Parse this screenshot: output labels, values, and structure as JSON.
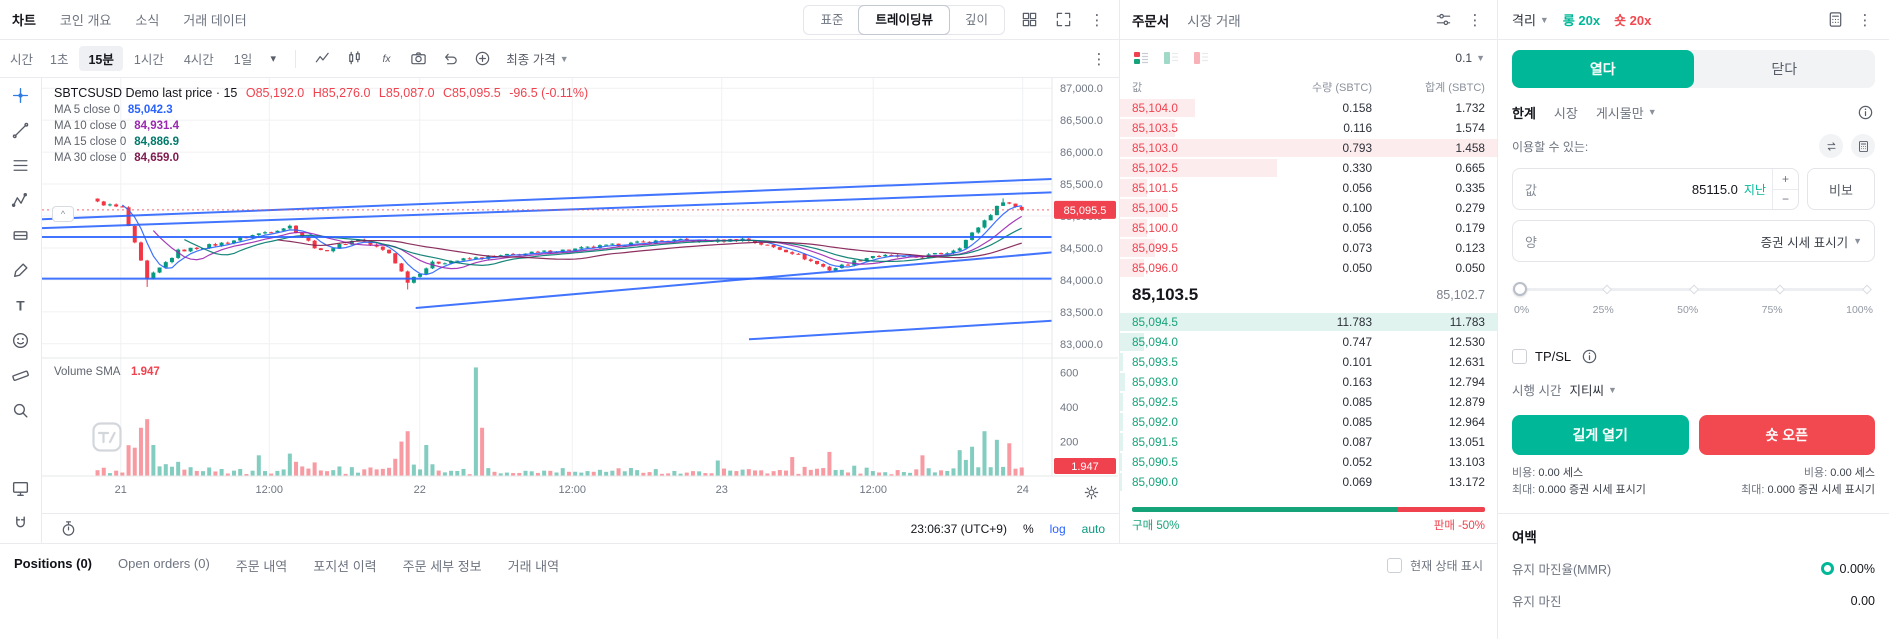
{
  "colors": {
    "green": "#00b897",
    "red": "#f1494f",
    "ob_red": "#f0424e",
    "ob_green": "#17a37a",
    "blue": "#2962ff"
  },
  "top_nav": {
    "tabs": [
      {
        "label": "차트",
        "active": true
      },
      {
        "label": "코인 개요",
        "active": false
      },
      {
        "label": "소식",
        "active": false
      },
      {
        "label": "거래 데이터",
        "active": false
      }
    ],
    "view_modes": [
      {
        "label": "표준",
        "active": false
      },
      {
        "label": "트레이딩뷰",
        "active": true
      },
      {
        "label": "깊이",
        "active": false
      }
    ]
  },
  "chart_toolbar": {
    "time_label": "시간",
    "intervals": [
      {
        "label": "1초",
        "active": false
      },
      {
        "label": "15분",
        "active": true
      },
      {
        "label": "1시간",
        "active": false
      },
      {
        "label": "4시간",
        "active": false
      },
      {
        "label": "1일",
        "active": false
      }
    ],
    "tools": [
      {
        "icon": "zigzag",
        "name": "chart-style"
      },
      {
        "icon": "candles",
        "name": "candle-type"
      },
      {
        "icon": "fx",
        "name": "indicators"
      },
      {
        "icon": "camera",
        "name": "snapshot"
      },
      {
        "icon": "undo",
        "name": "undo"
      },
      {
        "icon": "plus-circle",
        "name": "compare"
      }
    ],
    "last_price_label": "최종 가격"
  },
  "drawing_tools": [
    {
      "icon": "crosshair",
      "name": "crosshair",
      "active": true
    },
    {
      "icon": "trendline",
      "name": "trend-line",
      "active": false
    },
    {
      "icon": "fib",
      "name": "fib-retracement",
      "active": false
    },
    {
      "icon": "pattern",
      "name": "pattern",
      "active": false
    },
    {
      "icon": "position",
      "name": "long-short-position",
      "active": false
    },
    {
      "icon": "brush",
      "name": "brush",
      "active": false
    },
    {
      "icon": "text",
      "name": "text",
      "active": false
    },
    {
      "icon": "emoji",
      "name": "emoji",
      "active": false
    },
    {
      "icon": "ruler",
      "name": "measure",
      "active": false
    },
    {
      "icon": "zoom",
      "name": "zoom-in",
      "active": false
    }
  ],
  "drawing_tools_bottom": [
    {
      "icon": "monitor",
      "name": "object-tree",
      "active": false
    },
    {
      "icon": "magnet",
      "name": "magnet",
      "active": false
    }
  ],
  "legend": {
    "title": "SBTCSUSD Demo last price · 15",
    "ohlc": {
      "o": "O85,192.0",
      "h": "H85,276.0",
      "l": "L85,087.0",
      "c": "C85,095.5",
      "change": "-96.5 (-0.11%)"
    },
    "ma": [
      {
        "label": "MA 5 close 0",
        "value": "85,042.3",
        "color": "#2962ff"
      },
      {
        "label": "MA 10 close 0",
        "value": "84,931.4",
        "color": "#9b27b0"
      },
      {
        "label": "MA 15 close 0",
        "value": "84,886.9",
        "color": "#00796b"
      },
      {
        "label": "MA 30 close 0",
        "value": "84,659.0",
        "color": "#801a4f"
      }
    ],
    "volume_label": "Volume SMA",
    "volume_value": "1.947"
  },
  "chart_data": {
    "type": "candlestick",
    "symbol": "SBTCSUSD",
    "interval": "15",
    "price_axis": [
      {
        "v": 87000,
        "label": "87,000.0"
      },
      {
        "v": 86500,
        "label": "86,500.0"
      },
      {
        "v": 86000,
        "label": "86,000.0"
      },
      {
        "v": 85500,
        "label": "85,500.0"
      },
      {
        "v": 85000,
        "label": "85,000.0"
      },
      {
        "v": 84500,
        "label": "84,500.0"
      },
      {
        "v": 84000,
        "label": "84,000.0"
      },
      {
        "v": 83500,
        "label": "83,500.0"
      },
      {
        "v": 83000,
        "label": "83,000.0"
      }
    ],
    "price_view": [
      82840,
      87160
    ],
    "volume_axis": [
      {
        "v": 600,
        "label": "600"
      },
      {
        "v": 400,
        "label": "400"
      },
      {
        "v": 200,
        "label": "200"
      }
    ],
    "volume_max": 650,
    "time_ticks": [
      {
        "f": 0.078,
        "label": "21"
      },
      {
        "f": 0.225,
        "label": "12:00"
      },
      {
        "f": 0.374,
        "label": "22"
      },
      {
        "f": 0.525,
        "label": "12:00"
      },
      {
        "f": 0.673,
        "label": "23"
      },
      {
        "f": 0.823,
        "label": "12:00"
      },
      {
        "f": 0.971,
        "label": "24"
      }
    ],
    "last_price": 85095.5,
    "last_price_label": "85,095.5",
    "last_volume_label": "1.947",
    "candle_count": 150,
    "price_anchors": [
      [
        0,
        85210
      ],
      [
        4,
        85120
      ],
      [
        8,
        84000
      ],
      [
        13,
        84450
      ],
      [
        20,
        84570
      ],
      [
        25,
        84700
      ],
      [
        31,
        84840
      ],
      [
        36,
        84440
      ],
      [
        42,
        84640
      ],
      [
        47,
        84420
      ],
      [
        50,
        83980
      ],
      [
        54,
        84260
      ],
      [
        61,
        84340
      ],
      [
        70,
        84420
      ],
      [
        77,
        84480
      ],
      [
        85,
        84560
      ],
      [
        92,
        84620
      ],
      [
        100,
        84610
      ],
      [
        104,
        84640
      ],
      [
        112,
        84430
      ],
      [
        118,
        84160
      ],
      [
        125,
        84380
      ],
      [
        132,
        84350
      ],
      [
        137,
        84430
      ],
      [
        139,
        84520
      ],
      [
        146,
        85240
      ],
      [
        149,
        85095
      ]
    ],
    "wick_lows": {
      "8": 83890,
      "50": 83850
    },
    "wick_highs": {
      "0": 85276,
      "146": 85276
    },
    "volume_spikes": {
      "7": 280,
      "8": 330,
      "9": 180,
      "26": 120,
      "31": 130,
      "49": 200,
      "50": 260,
      "53": 180,
      "61": 630,
      "62": 280,
      "100": 90,
      "112": 110,
      "118": 140,
      "133": 120,
      "139": 150,
      "141": 170,
      "143": 260,
      "145": 210,
      "147": 190
    },
    "trendlines": [
      {
        "x1": 0,
        "p1": 84950,
        "x2": 1,
        "p2": 85580
      },
      {
        "x1": 0,
        "p1": 84810,
        "x2": 1,
        "p2": 85370
      },
      {
        "x1": 0,
        "p1": 84672,
        "x2": 1,
        "p2": 84672
      },
      {
        "x1": 0,
        "p1": 84020,
        "x2": 1,
        "p2": 84020
      },
      {
        "x1": 0.37,
        "p1": 83560,
        "x2": 1,
        "p2": 84430
      },
      {
        "x1": 0.7,
        "p1": 83070,
        "x2": 1,
        "p2": 83360
      }
    ],
    "ma_periods": [
      5,
      10,
      15,
      30
    ]
  },
  "chart_status": {
    "clock": "23:06:37 (UTC+9)",
    "percent": "%",
    "log": "log",
    "auto": "auto"
  },
  "orderbook": {
    "tabs": [
      {
        "label": "주문서",
        "active": true
      },
      {
        "label": "시장 거래",
        "active": false
      }
    ],
    "layout_modes": [
      {
        "name": "combined",
        "active": true
      },
      {
        "name": "bids-only",
        "active": false
      },
      {
        "name": "asks-only",
        "active": false
      }
    ],
    "precision": "0.1",
    "columns": [
      "값",
      "수량 (SBTC)",
      "합계 (SBTC)"
    ],
    "asks": [
      {
        "price": "85,104.0",
        "amount": "0.158",
        "total": "1.732"
      },
      {
        "price": "85,103.5",
        "amount": "0.116",
        "total": "1.574"
      },
      {
        "price": "85,103.0",
        "amount": "0.793",
        "total": "1.458"
      },
      {
        "price": "85,102.5",
        "amount": "0.330",
        "total": "0.665"
      },
      {
        "price": "85,101.5",
        "amount": "0.056",
        "total": "0.335"
      },
      {
        "price": "85,100.5",
        "amount": "0.100",
        "total": "0.279"
      },
      {
        "price": "85,100.0",
        "amount": "0.056",
        "total": "0.179"
      },
      {
        "price": "85,099.5",
        "amount": "0.073",
        "total": "0.123"
      },
      {
        "price": "85,096.0",
        "amount": "0.050",
        "total": "0.050"
      }
    ],
    "mid_price": "85,103.5",
    "mark_price": "85,102.7",
    "bids": [
      {
        "price": "85,094.5",
        "amount": "11.783",
        "total": "11.783"
      },
      {
        "price": "85,094.0",
        "amount": "0.747",
        "total": "12.530"
      },
      {
        "price": "85,093.5",
        "amount": "0.101",
        "total": "12.631"
      },
      {
        "price": "85,093.0",
        "amount": "0.163",
        "total": "12.794"
      },
      {
        "price": "85,092.5",
        "amount": "0.085",
        "total": "12.879"
      },
      {
        "price": "85,092.0",
        "amount": "0.085",
        "total": "12.964"
      },
      {
        "price": "85,091.5",
        "amount": "0.087",
        "total": "13.051"
      },
      {
        "price": "85,090.5",
        "amount": "0.052",
        "total": "13.103"
      },
      {
        "price": "85,090.0",
        "amount": "0.069",
        "total": "13.172"
      }
    ],
    "gauge": {
      "buy_label": "구매 50%",
      "sell_label": "판매 -50%",
      "buy_bar": 75,
      "sell_bar": 25
    }
  },
  "trade_panel": {
    "margin_mode": "격리",
    "long_leverage": "롱 20x",
    "short_leverage": "숏 20x",
    "open_tab": "열다",
    "close_tab": "닫다",
    "order_types": [
      {
        "label": "한계",
        "active": true,
        "dropdown": false
      },
      {
        "label": "시장",
        "active": false,
        "dropdown": false
      },
      {
        "label": "게시물만",
        "active": false,
        "dropdown": true
      }
    ],
    "available_label": "이용할 수 있는:",
    "price_field": {
      "label": "값",
      "value": "85115.0",
      "last_link": "지난",
      "bbo": "비보"
    },
    "amount_field": {
      "label": "양",
      "unit": "증권 시세 표시기"
    },
    "slider_labels": [
      "0%",
      "25%",
      "50%",
      "75%",
      "100%"
    ],
    "slider_value_pct": 0,
    "tpsl_label": "TP/SL",
    "time_in_force_label": "시행 시간",
    "time_in_force_value": "지티씨",
    "open_long_button": "길게 열기",
    "open_short_button": "숏 오픈",
    "long_cost": {
      "cost_label": "비용:",
      "cost": "0.00 세스",
      "max_label": "최대:",
      "max": "0.000 증권 시세 표시기"
    },
    "short_cost": {
      "cost_label": "비용:",
      "cost": "0.00 세스",
      "max_label": "최대:",
      "max": "0.000 증권 시세 표시기"
    },
    "margin_section": {
      "title": "여백",
      "mmr_label": "유지 마진율(MMR)",
      "mmr_value": "0.00%",
      "maint_label": "유지 마진",
      "maint_value": "0.00"
    }
  },
  "bottom_panel": {
    "tabs": [
      {
        "label": "Positions (0)",
        "active": true
      },
      {
        "label": "Open orders (0)",
        "active": false
      },
      {
        "label": "주문 내역",
        "active": false
      },
      {
        "label": "포지션 이력",
        "active": false
      },
      {
        "label": "주문 세부 정보",
        "active": false
      },
      {
        "label": "거래 내역",
        "active": false
      }
    ],
    "show_state_label": "현재 상태 표시"
  }
}
